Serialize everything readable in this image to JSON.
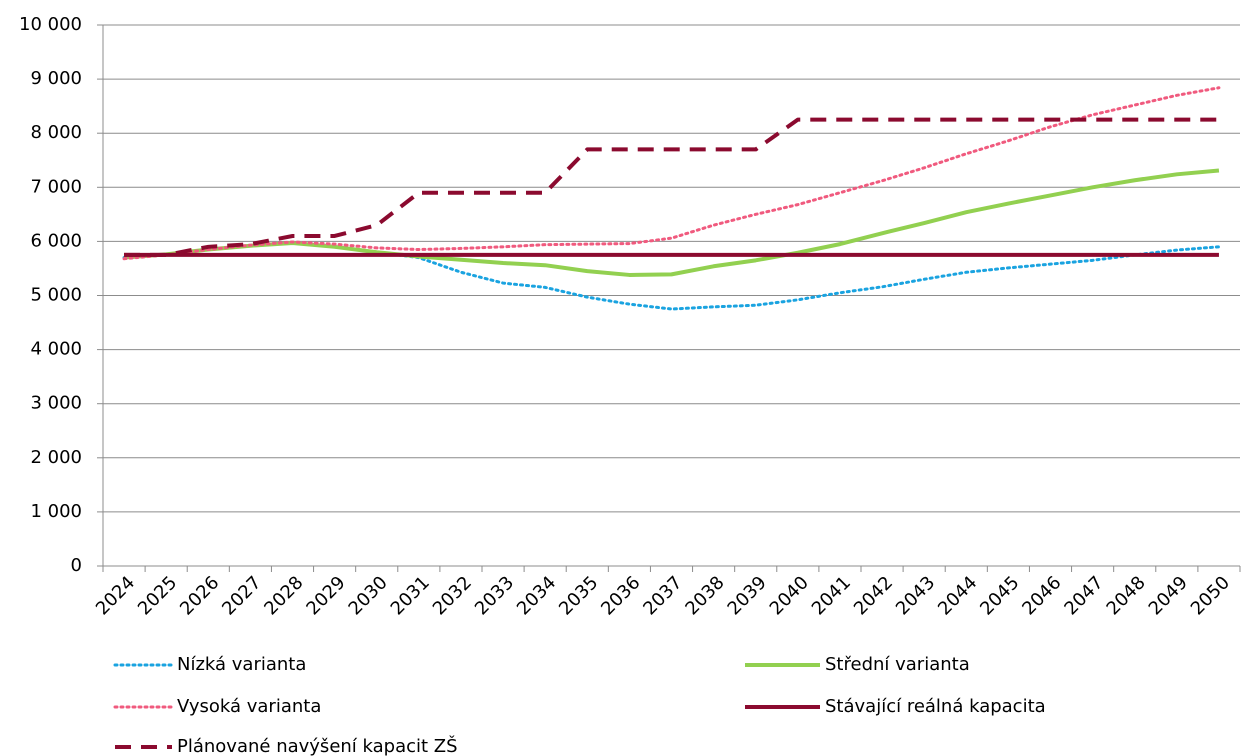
{
  "chart_data": {
    "type": "line",
    "categories": [
      "2024",
      "2025",
      "2026",
      "2027",
      "2028",
      "2029",
      "2030",
      "2031",
      "2032",
      "2033",
      "2034",
      "2035",
      "2036",
      "2037",
      "2038",
      "2039",
      "2040",
      "2041",
      "2042",
      "2043",
      "2044",
      "2045",
      "2046",
      "2047",
      "2048",
      "2049",
      "2050"
    ],
    "ylim": [
      0,
      10000
    ],
    "yticks": [
      0,
      {
        "value": 1000,
        "label": "1 000"
      },
      {
        "value": 2000,
        "label": "2 000"
      },
      {
        "value": 3000,
        "label": "3 000"
      },
      {
        "value": 4000,
        "label": "4 000"
      },
      {
        "value": 5000,
        "label": "5 000"
      },
      {
        "value": 6000,
        "label": "6 000"
      },
      {
        "value": 7000,
        "label": "7 000"
      },
      {
        "value": 8000,
        "label": "8 000"
      },
      {
        "value": 9000,
        "label": "9 000"
      },
      {
        "value": 10000,
        "label": "10 000"
      }
    ],
    "grid": true,
    "legend": "bottom",
    "series": [
      {
        "name": "Nízká varianta",
        "color": "#1aa3e0",
        "dash": "dotted",
        "values": [
          5700,
          5750,
          5850,
          5920,
          5980,
          5900,
          5800,
          5700,
          5430,
          5230,
          5150,
          4970,
          4840,
          4750,
          4790,
          4820,
          4920,
          5050,
          5160,
          5300,
          5430,
          5510,
          5580,
          5650,
          5750,
          5840,
          5900
        ]
      },
      {
        "name": "Střední varianta",
        "color": "#92d050",
        "dash": "solid",
        "values": [
          5700,
          5760,
          5850,
          5920,
          5970,
          5900,
          5800,
          5720,
          5660,
          5600,
          5560,
          5450,
          5380,
          5390,
          5540,
          5650,
          5790,
          5950,
          6150,
          6340,
          6540,
          6700,
          6850,
          7000,
          7130,
          7240,
          7310
        ]
      },
      {
        "name": "Vysoká varianta",
        "color": "#f05a7e",
        "dash": "dotted",
        "values": [
          5680,
          5750,
          5850,
          5930,
          5990,
          5950,
          5880,
          5850,
          5870,
          5900,
          5940,
          5950,
          5960,
          6060,
          6300,
          6500,
          6680,
          6900,
          7120,
          7360,
          7620,
          7860,
          8120,
          8340,
          8520,
          8700,
          8840
        ]
      },
      {
        "name": "Stávající reálná kapacita",
        "color": "#8b0a2f",
        "dash": "solid",
        "values": [
          5750,
          5750,
          5750,
          5750,
          5750,
          5750,
          5750,
          5750,
          5750,
          5750,
          5750,
          5750,
          5750,
          5750,
          5750,
          5750,
          5750,
          5750,
          5750,
          5750,
          5750,
          5750,
          5750,
          5750,
          5750,
          5750,
          5750
        ]
      },
      {
        "name": "Plánované navýšení kapacit ZŠ",
        "color": "#8b0a2f",
        "dash": "dashed",
        "values": [
          5750,
          5750,
          5900,
          5950,
          6100,
          6100,
          6300,
          6900,
          6900,
          6900,
          6900,
          7700,
          7700,
          7700,
          7700,
          7700,
          8250,
          8250,
          8250,
          8250,
          8250,
          8250,
          8250,
          8250,
          8250,
          8250,
          8250
        ]
      }
    ]
  }
}
